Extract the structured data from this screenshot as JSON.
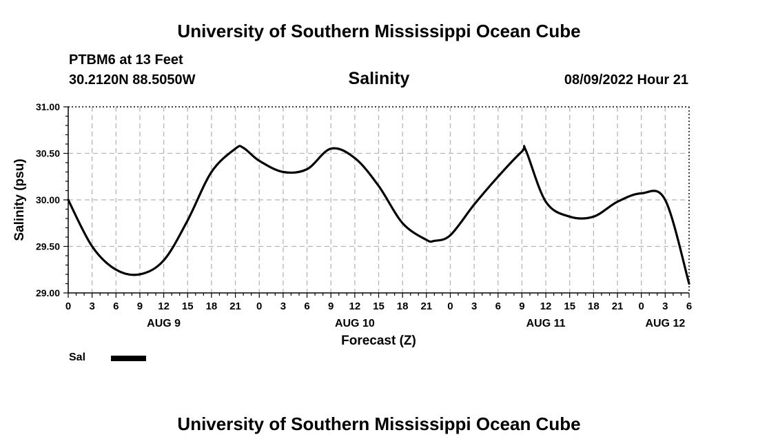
{
  "header": {
    "title": "University of Southern Mississippi Ocean Cube",
    "station": "PTBM6 at 13 Feet",
    "coords": "30.2120N  88.5050W",
    "datetime": "08/09/2022 Hour 21"
  },
  "footer": {
    "title": "University of Southern Mississippi Ocean Cube"
  },
  "legend": {
    "label": "Sal",
    "color": "#000000"
  },
  "chart_data": {
    "type": "line",
    "title": "Salinity",
    "xlabel": "Forecast (Z)",
    "ylabel": "Salinity (psu)",
    "ylim": [
      29.0,
      31.0
    ],
    "xlim": [
      0,
      78
    ],
    "y_ticks": [
      "29.00",
      "29.50",
      "30.00",
      "30.50",
      "31.00"
    ],
    "x_tick_labels": [
      "0",
      "3",
      "6",
      "9",
      "12",
      "15",
      "18",
      "21",
      "0",
      "3",
      "6",
      "9",
      "12",
      "15",
      "18",
      "21",
      "0",
      "3",
      "6",
      "9",
      "12",
      "15",
      "18",
      "21",
      "0",
      "3",
      "6"
    ],
    "date_labels": [
      {
        "label": "AUG 9",
        "hour": 12
      },
      {
        "label": "AUG 10",
        "hour": 36
      },
      {
        "label": "AUG 11",
        "hour": 60
      },
      {
        "label": "AUG 12",
        "hour": 75
      }
    ],
    "grid": true,
    "series": [
      {
        "name": "Sal",
        "x": [
          0,
          3,
          6,
          9,
          12,
          15,
          18,
          21,
          22,
          24,
          27,
          30,
          33,
          36,
          39,
          42,
          45,
          46,
          48,
          51,
          54,
          57,
          57.5,
          60,
          63,
          66,
          69,
          72,
          75,
          78
        ],
        "values": [
          30.0,
          29.5,
          29.25,
          29.2,
          29.35,
          29.78,
          30.3,
          30.55,
          30.56,
          30.42,
          30.3,
          30.33,
          30.55,
          30.45,
          30.15,
          29.75,
          29.57,
          29.56,
          29.62,
          29.95,
          30.25,
          30.52,
          30.53,
          29.98,
          29.82,
          29.82,
          29.98,
          30.07,
          30.0,
          29.1
        ]
      }
    ]
  }
}
